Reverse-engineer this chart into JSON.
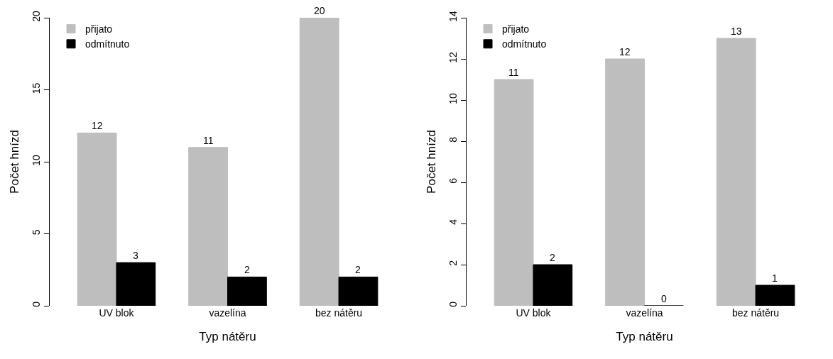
{
  "chart_data": [
    {
      "type": "bar",
      "xlabel": "Typ nátěru",
      "ylabel": "Počet hnízd",
      "categories": [
        "UV blok",
        "vazelína",
        "bez nátěru"
      ],
      "series": [
        {
          "name": "přijato",
          "color": "#bebebe",
          "values": [
            12,
            11,
            20
          ]
        },
        {
          "name": "odmítnuto",
          "color": "#000000",
          "values": [
            3,
            2,
            2
          ]
        }
      ],
      "ylim": [
        0,
        20
      ],
      "yticks": [
        0,
        5,
        10,
        15,
        20
      ],
      "data_labels": true,
      "grid": false,
      "legend": "top left"
    },
    {
      "type": "bar",
      "xlabel": "Typ nátěru",
      "ylabel": "Počet hnízd",
      "categories": [
        "UV blok",
        "vazelína",
        "bez nátěru"
      ],
      "series": [
        {
          "name": "přijato",
          "color": "#bebebe",
          "values": [
            11,
            12,
            13
          ]
        },
        {
          "name": "odmítnuto",
          "color": "#000000",
          "values": [
            2,
            0,
            1
          ]
        }
      ],
      "ylim": [
        0,
        14
      ],
      "yticks": [
        0,
        2,
        4,
        6,
        8,
        10,
        12,
        14
      ],
      "data_labels": true,
      "grid": false,
      "legend": "top left"
    }
  ]
}
